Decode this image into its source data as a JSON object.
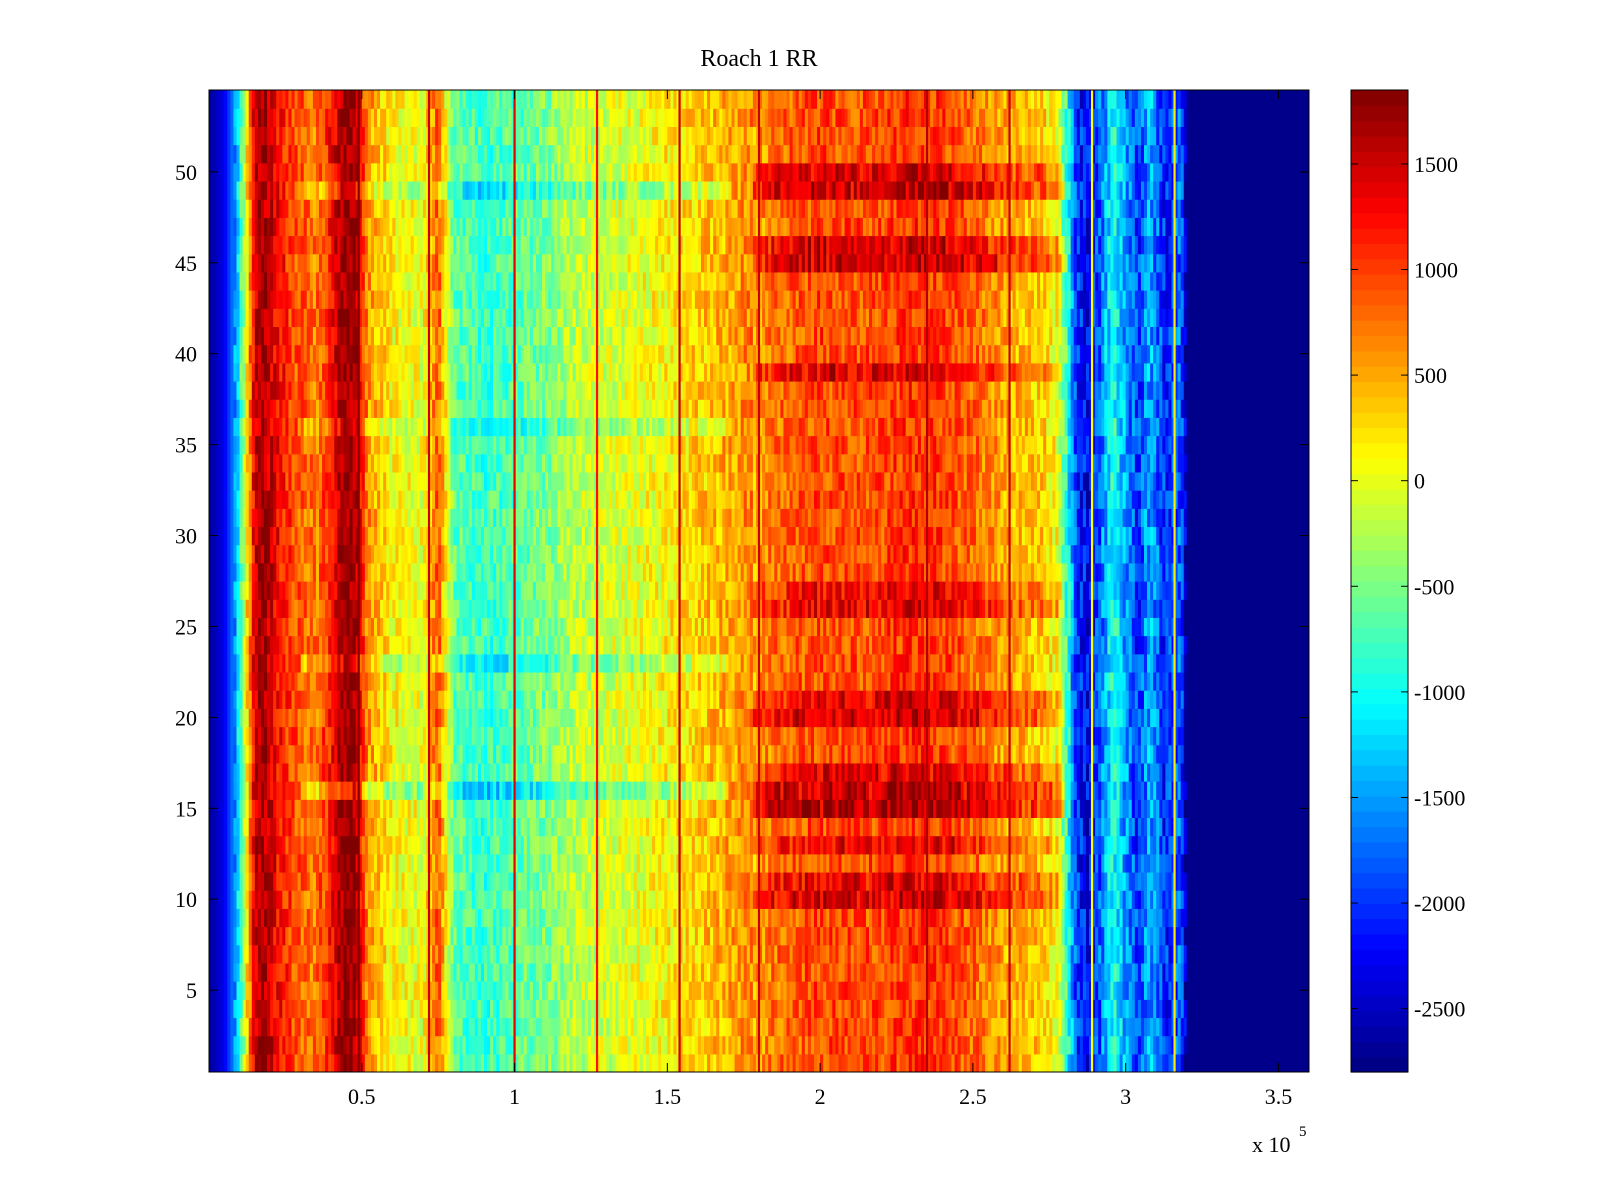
{
  "chart_data": {
    "type": "heatmap",
    "title": "Roach 1 RR",
    "xlabel": "",
    "ylabel": "",
    "x_scale_label": {
      "base": "x 10",
      "exponent": "5"
    },
    "xlim": [
      0,
      360000
    ],
    "ylim": [
      0.5,
      54.5
    ],
    "rows": 54,
    "colormap": "jet",
    "x_ticks": [
      {
        "value": 50000,
        "label": "0.5"
      },
      {
        "value": 100000,
        "label": "1"
      },
      {
        "value": 150000,
        "label": "1.5"
      },
      {
        "value": 200000,
        "label": "2"
      },
      {
        "value": 250000,
        "label": "2.5"
      },
      {
        "value": 300000,
        "label": "3"
      },
      {
        "value": 350000,
        "label": "3.5"
      }
    ],
    "y_ticks": [
      {
        "value": 5,
        "label": "5"
      },
      {
        "value": 10,
        "label": "10"
      },
      {
        "value": 15,
        "label": "15"
      },
      {
        "value": 20,
        "label": "20"
      },
      {
        "value": 25,
        "label": "25"
      },
      {
        "value": 30,
        "label": "30"
      },
      {
        "value": 35,
        "label": "35"
      },
      {
        "value": 40,
        "label": "40"
      },
      {
        "value": 45,
        "label": "45"
      },
      {
        "value": 50,
        "label": "50"
      }
    ],
    "colorbar": {
      "range": [
        -2800,
        1850
      ],
      "ticks": [
        {
          "value": 1500,
          "label": "1500"
        },
        {
          "value": 1000,
          "label": "1000"
        },
        {
          "value": 500,
          "label": "500"
        },
        {
          "value": 0,
          "label": "0"
        },
        {
          "value": -500,
          "label": "-500"
        },
        {
          "value": -1000,
          "label": "-1000"
        },
        {
          "value": -1500,
          "label": "-1500"
        },
        {
          "value": -2000,
          "label": "-2000"
        },
        {
          "value": -2500,
          "label": "-2500"
        }
      ]
    },
    "profile": {
      "description_units": "column x position (data units) vs typical value",
      "x": [
        0,
        5000,
        9000,
        12000,
        15000,
        18000,
        22000,
        28000,
        35000,
        40000,
        44000,
        48000,
        52000,
        60000,
        70000,
        75000,
        80000,
        90000,
        100000,
        110000,
        120000,
        130000,
        140000,
        150000,
        160000,
        170000,
        178000,
        185000,
        200000,
        215000,
        230000,
        240000,
        250000,
        262000,
        272000,
        278000,
        281000,
        284000,
        288000,
        292000,
        296000,
        300000,
        304000,
        308000,
        313000,
        318000,
        320000,
        360000
      ],
      "v": [
        -2700,
        -2300,
        -1400,
        0,
        1500,
        1700,
        1300,
        900,
        700,
        1200,
        1800,
        1700,
        600,
        100,
        0,
        900,
        -600,
        -800,
        -650,
        -500,
        -200,
        -100,
        0,
        150,
        300,
        500,
        700,
        1000,
        1200,
        1150,
        1300,
        1250,
        1050,
        700,
        600,
        300,
        -900,
        -2000,
        -2300,
        -1700,
        -900,
        -1500,
        -2000,
        -1400,
        -2100,
        -1700,
        -2750,
        -2750
      ]
    },
    "vertical_lines": [
      {
        "x": 49000,
        "value": 1800
      },
      {
        "x": 72000,
        "value": 1500
      },
      {
        "x": 100000,
        "value": 1400
      },
      {
        "x": 127000,
        "value": 1200
      },
      {
        "x": 154000,
        "value": 1500
      },
      {
        "x": 180000,
        "value": 1500
      },
      {
        "x": 235000,
        "value": 1600
      },
      {
        "x": 262000,
        "value": 1500
      },
      {
        "x": 289000,
        "value": 100
      },
      {
        "x": 316000,
        "value": 200
      }
    ],
    "hot_rows": [
      {
        "row": 10,
        "boost": 650
      },
      {
        "row": 11,
        "boost": 500
      },
      {
        "row": 13,
        "boost": 450
      },
      {
        "row": 15,
        "boost": 850
      },
      {
        "row": 16,
        "boost": 800
      },
      {
        "row": 17,
        "boost": 500
      },
      {
        "row": 20,
        "boost": 650
      },
      {
        "row": 21,
        "boost": 550
      },
      {
        "row": 26,
        "boost": 500
      },
      {
        "row": 27,
        "boost": 400
      },
      {
        "row": 39,
        "boost": 550
      },
      {
        "row": 45,
        "boost": 700
      },
      {
        "row": 46,
        "boost": 600
      },
      {
        "row": 49,
        "boost": 750
      },
      {
        "row": 50,
        "boost": 650
      }
    ],
    "cool_rows": [
      {
        "row": 16,
        "cool": 500
      },
      {
        "row": 23,
        "cool": 350
      },
      {
        "row": 36,
        "cool": 300
      },
      {
        "row": 49,
        "cool": 400
      }
    ]
  }
}
